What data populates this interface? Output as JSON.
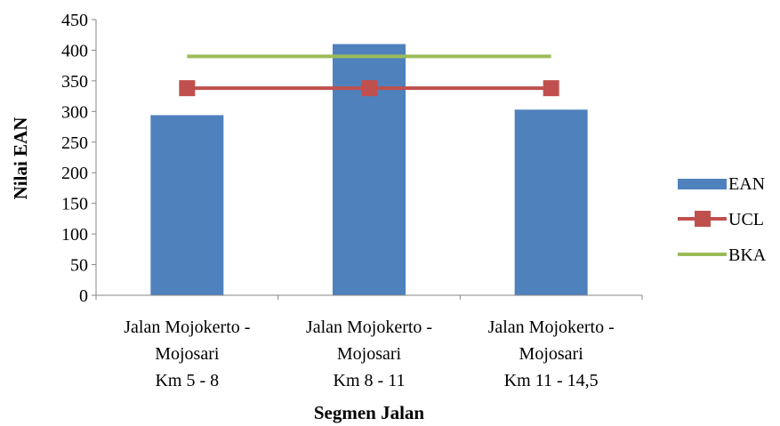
{
  "chart_data": {
    "type": "bar",
    "xlabel": "Segmen Jalan",
    "ylabel": "Nilai EAN",
    "ylim": [
      0,
      450
    ],
    "yticks": [
      0,
      50,
      100,
      150,
      200,
      250,
      300,
      350,
      400,
      450
    ],
    "categories": [
      [
        "Jalan Mojokerto -",
        "Mojosari",
        "Km 5 - 8"
      ],
      [
        "Jalan Mojokerto -",
        "Mojosari",
        "Km 8 - 11"
      ],
      [
        "Jalan Mojokerto -",
        "Mojosari",
        "Km 11 - 14,5"
      ]
    ],
    "series": [
      {
        "name": "EAN",
        "type": "bar",
        "color": "#4f81bd",
        "values": [
          294,
          410,
          303
        ]
      },
      {
        "name": "UCL",
        "type": "line",
        "marker": "square",
        "color": "#c0504d",
        "values": [
          338,
          338,
          338
        ]
      },
      {
        "name": "BKA",
        "type": "line",
        "marker": "none",
        "color": "#9bbb59",
        "values": [
          390,
          390,
          390
        ]
      }
    ],
    "grid": false,
    "legend": "right"
  }
}
